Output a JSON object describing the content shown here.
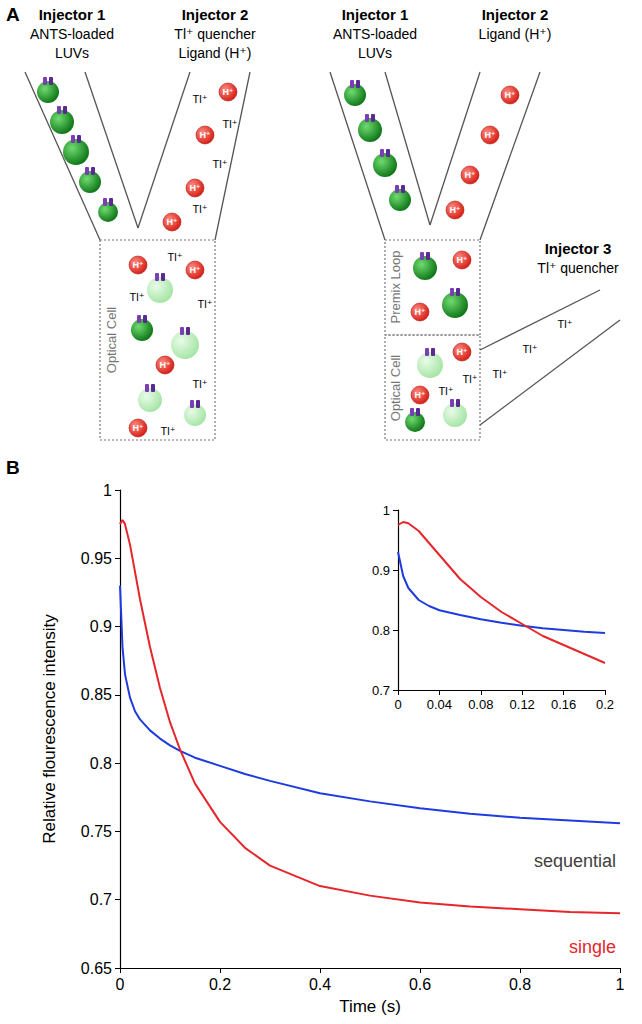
{
  "panel_labels": [
    "A",
    "B"
  ],
  "diagram": {
    "left": {
      "injector_1": {
        "title": "Injector 1",
        "lines": [
          "ANTS-loaded",
          "LUVs"
        ]
      },
      "injector_2": {
        "title": "Injector 2",
        "lines": [
          "Tl⁺ quencher",
          "Ligand (H⁺)"
        ]
      },
      "cell": "Optical Cell"
    },
    "right": {
      "injector_1": {
        "title": "Injector 1",
        "lines": [
          "ANTS-loaded",
          "LUVs"
        ]
      },
      "injector_2": {
        "title": "Injector 2",
        "lines": [
          "Ligand (H⁺)"
        ]
      },
      "injector_3": {
        "title": "Injector 3",
        "lines": [
          "Tl⁺ quencher"
        ]
      },
      "premix": "Premix Loop",
      "cell": "Optical Cell"
    },
    "ions": {
      "quencher": "Tl⁺",
      "proton": "H⁺"
    }
  },
  "chart_data": [
    {
      "type": "line",
      "y_label": "Relative flourescence intensity",
      "x_label": "Time (s)",
      "xlim": [
        0,
        1
      ],
      "xticks": [
        0,
        0.2,
        0.4,
        0.6,
        0.8,
        1
      ],
      "ylim": [
        0.65,
        1
      ],
      "yticks": [
        0.65,
        0.7,
        0.75,
        0.8,
        0.85,
        0.9,
        0.95,
        1
      ],
      "grid": false,
      "x": [
        0,
        0.005,
        0.01,
        0.02,
        0.03,
        0.04,
        0.06,
        0.08,
        0.1,
        0.12,
        0.15,
        0.2,
        0.25,
        0.3,
        0.4,
        0.5,
        0.6,
        0.7,
        0.8,
        0.9,
        1.0
      ],
      "series": [
        {
          "name": "sequential",
          "color": "#1f3be0",
          "values": [
            0.93,
            0.885,
            0.865,
            0.848,
            0.838,
            0.832,
            0.824,
            0.818,
            0.813,
            0.809,
            0.804,
            0.798,
            0.792,
            0.787,
            0.778,
            0.772,
            0.767,
            0.763,
            0.76,
            0.758,
            0.756
          ]
        },
        {
          "name": "single",
          "color": "#e5262b",
          "values": [
            0.975,
            0.978,
            0.975,
            0.96,
            0.94,
            0.92,
            0.885,
            0.855,
            0.83,
            0.81,
            0.785,
            0.757,
            0.738,
            0.725,
            0.71,
            0.703,
            0.698,
            0.695,
            0.693,
            0.691,
            0.69
          ]
        }
      ]
    },
    {
      "type": "line",
      "xlim": [
        0,
        0.2
      ],
      "xticks": [
        0,
        0.04,
        0.08,
        0.12,
        0.16,
        0.2
      ],
      "ylim": [
        0.7,
        1
      ],
      "yticks": [
        0.7,
        0.8,
        0.9,
        1
      ],
      "grid": false,
      "x": [
        0,
        0.005,
        0.01,
        0.02,
        0.03,
        0.04,
        0.06,
        0.08,
        0.1,
        0.12,
        0.14,
        0.16,
        0.18,
        0.2
      ],
      "series": [
        {
          "color": "#1f3be0",
          "values": [
            0.93,
            0.89,
            0.87,
            0.85,
            0.84,
            0.833,
            0.825,
            0.818,
            0.812,
            0.807,
            0.803,
            0.8,
            0.797,
            0.795
          ]
        },
        {
          "color": "#e5262b",
          "values": [
            0.975,
            0.98,
            0.978,
            0.965,
            0.945,
            0.925,
            0.885,
            0.855,
            0.83,
            0.81,
            0.79,
            0.775,
            0.76,
            0.745
          ]
        }
      ]
    }
  ]
}
